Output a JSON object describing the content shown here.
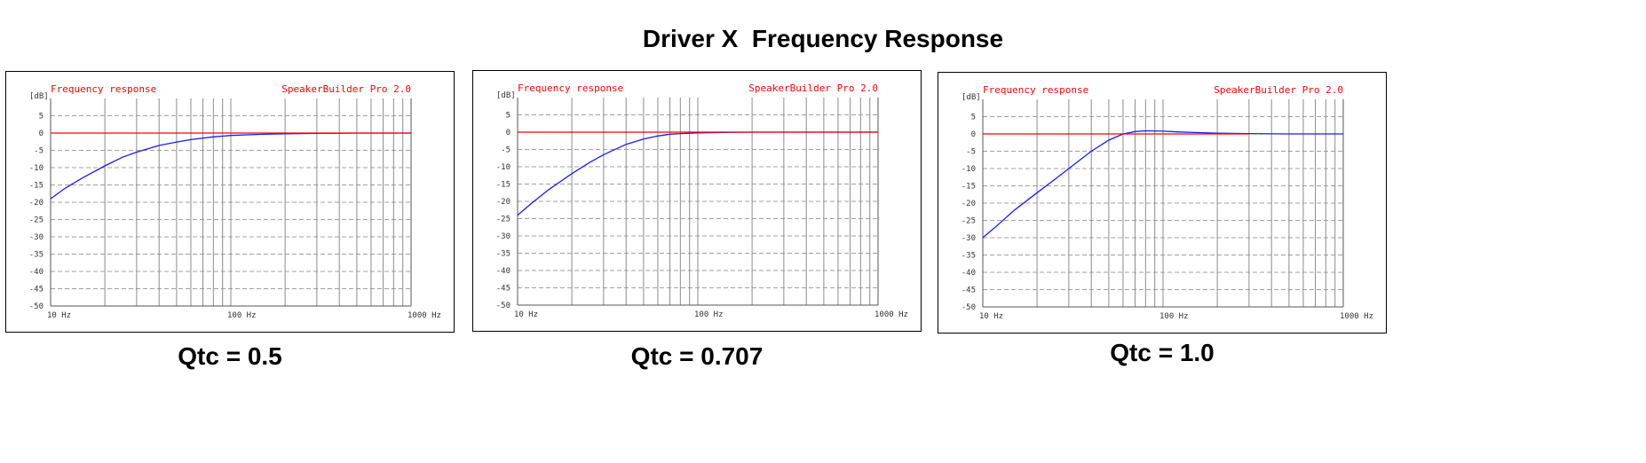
{
  "title": "Driver X  Frequency Response",
  "colors": {
    "response": "#1a1aff",
    "reference": "#ff0000",
    "label": "#ff0000",
    "grid_v": "#8c8c8c",
    "grid_h": "#a0a0a0"
  },
  "chart_data": [
    {
      "type": "line",
      "caption": "Qtc = 0.5",
      "plot_title": "Frequency response",
      "software": "SpeakerBuilder Pro 2.0",
      "ylabel": "[dB]",
      "xscale": "log",
      "xlim": [
        10,
        1000
      ],
      "ylim": [
        -50,
        10
      ],
      "yticks": [
        5,
        0,
        -5,
        -10,
        -15,
        -20,
        -25,
        -30,
        -35,
        -40,
        -45,
        -50
      ],
      "ytick_labels": [
        "5",
        "0",
        "-5",
        "-10",
        "-15",
        "-20",
        "-25",
        "-30",
        "-35",
        "-40",
        "-45",
        "-50"
      ],
      "xticks": [
        10,
        100,
        1000
      ],
      "xtick_labels": [
        "10 Hz",
        "100 Hz",
        "1000 Hz"
      ],
      "reference_line": {
        "y": 0,
        "x_end": 1000
      },
      "series": [
        {
          "x": [
            10,
            12,
            15,
            20,
            25,
            30,
            40,
            50,
            60,
            80,
            100,
            150,
            200,
            300,
            500,
            1000
          ],
          "y": [
            -19,
            -16,
            -13,
            -9.5,
            -7,
            -5.5,
            -3.6,
            -2.6,
            -1.9,
            -1.1,
            -0.7,
            -0.35,
            -0.2,
            -0.1,
            0,
            0
          ]
        }
      ]
    },
    {
      "type": "line",
      "caption": "Qtc = 0.707",
      "plot_title": "Frequency response",
      "software": "SpeakerBuilder Pro 2.0",
      "ylabel": "[dB]",
      "xscale": "log",
      "xlim": [
        10,
        1000
      ],
      "ylim": [
        -50,
        10
      ],
      "yticks": [
        5,
        0,
        -5,
        -10,
        -15,
        -20,
        -25,
        -30,
        -35,
        -40,
        -45,
        -50
      ],
      "ytick_labels": [
        "5",
        "0",
        "-5",
        "-10",
        "-15",
        "-20",
        "-25",
        "-30",
        "-35",
        "-40",
        "-45",
        "-50"
      ],
      "xticks": [
        10,
        100,
        1000
      ],
      "xtick_labels": [
        "10 Hz",
        "100 Hz",
        "1000 Hz"
      ],
      "reference_line": {
        "y": 0,
        "x_end": 1000
      },
      "series": [
        {
          "x": [
            10,
            12,
            15,
            20,
            25,
            30,
            40,
            50,
            60,
            70,
            80,
            100,
            150,
            200,
            500,
            1000
          ],
          "y": [
            -24,
            -20.5,
            -16.5,
            -12,
            -8.8,
            -6.5,
            -3.5,
            -2,
            -1.1,
            -0.6,
            -0.4,
            -0.2,
            -0.05,
            0,
            0,
            0
          ]
        }
      ]
    },
    {
      "type": "line",
      "caption": "Qtc = 1.0",
      "plot_title": "Frequency response",
      "software": "SpeakerBuilder Pro 2.0",
      "ylabel": "[dB]",
      "xscale": "log",
      "xlim": [
        10,
        1000
      ],
      "ylim": [
        -50,
        10
      ],
      "yticks": [
        5,
        0,
        -5,
        -10,
        -15,
        -20,
        -25,
        -30,
        -35,
        -40,
        -45,
        -50
      ],
      "ytick_labels": [
        "5",
        "0",
        "-5",
        "-10",
        "-15",
        "-20",
        "-25",
        "-30",
        "-35",
        "-40",
        "-45",
        "-50"
      ],
      "xticks": [
        10,
        100,
        1000
      ],
      "xtick_labels": [
        "10 Hz",
        "100 Hz",
        "1000 Hz"
      ],
      "reference_line": {
        "y": 0,
        "x_end": 300
      },
      "series": [
        {
          "x": [
            10,
            12,
            15,
            20,
            25,
            30,
            40,
            50,
            60,
            70,
            80,
            100,
            120,
            150,
            200,
            300,
            500,
            1000
          ],
          "y": [
            -30,
            -26.5,
            -22,
            -17,
            -13.2,
            -10,
            -5,
            -1.8,
            0,
            0.7,
            0.9,
            0.8,
            0.6,
            0.4,
            0.2,
            0.1,
            0,
            0
          ]
        }
      ]
    }
  ]
}
